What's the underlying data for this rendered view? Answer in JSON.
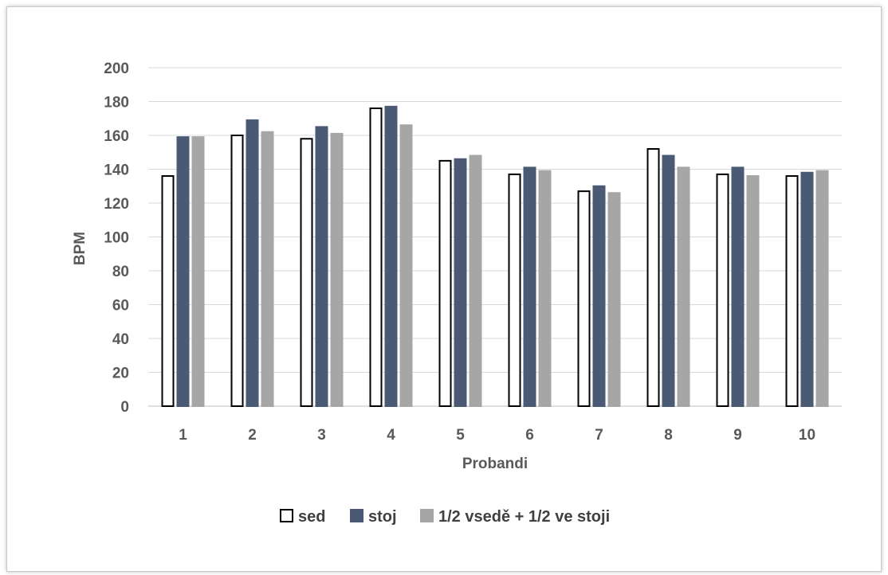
{
  "chart_data": {
    "type": "bar",
    "title": "",
    "xlabel": "Probandi",
    "ylabel": "BPM",
    "ylim": [
      0,
      200
    ],
    "yticks": [
      0,
      20,
      40,
      60,
      80,
      100,
      120,
      140,
      160,
      180,
      200
    ],
    "categories": [
      "1",
      "2",
      "3",
      "4",
      "5",
      "6",
      "7",
      "8",
      "9",
      "10"
    ],
    "grid": "horizontal",
    "legend_position": "bottom",
    "series": [
      {
        "name": "sed",
        "fill": "#ffffff",
        "stroke": "#000000",
        "values": [
          136,
          160,
          158,
          176,
          145,
          137,
          127,
          152,
          137,
          136
        ]
      },
      {
        "name": "stoj",
        "fill": "#4a5a74",
        "stroke": "#4a5a74",
        "values": [
          159,
          169,
          165,
          177,
          146,
          141,
          130,
          148,
          141,
          138
        ]
      },
      {
        "name": "1/2 vsedě + 1/2 ve stoji",
        "fill": "#a6a6a6",
        "stroke": "#a6a6a6",
        "values": [
          159,
          162,
          161,
          166,
          148,
          139,
          126,
          141,
          136,
          139
        ]
      }
    ]
  }
}
